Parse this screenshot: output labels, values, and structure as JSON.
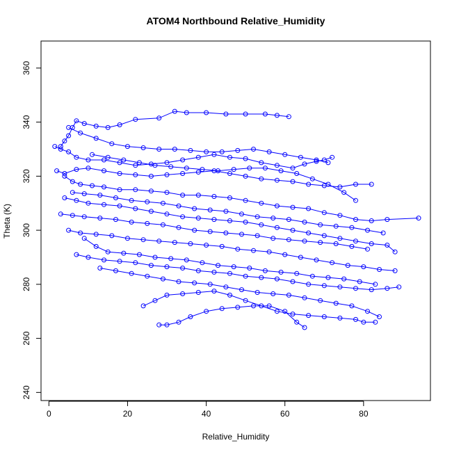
{
  "chart_data": {
    "type": "line",
    "title": "ATOM4 Northbound Relative_Humidity",
    "xlabel": "Relative_Humidity",
    "ylabel": "Theta (K)",
    "xlim": [
      -2,
      97
    ],
    "ylim": [
      237,
      370
    ],
    "xticks": [
      0,
      20,
      40,
      60,
      80
    ],
    "yticks": [
      240,
      260,
      280,
      300,
      320,
      340,
      360
    ],
    "grid": false,
    "legend": "none",
    "colors": {
      "series": "#0000ff",
      "axis": "#000000",
      "background": "#ffffff"
    },
    "markers": "open-circle",
    "series": [
      {
        "values": [
          [
            3.0,
            331.0
          ],
          [
            4.0,
            333.0
          ],
          [
            5.0,
            335.0
          ],
          [
            6.0,
            338.0
          ],
          [
            7.0,
            340.5
          ],
          [
            9.0,
            339.5
          ],
          [
            12.0,
            338.5
          ],
          [
            15.0,
            338.0
          ],
          [
            18.0,
            339.0
          ],
          [
            22.0,
            341.0
          ],
          [
            28.0,
            341.5
          ],
          [
            32.0,
            344.0
          ],
          [
            35.0,
            343.5
          ],
          [
            40.0,
            343.5
          ],
          [
            45.0,
            343.0
          ],
          [
            50.0,
            343.0
          ],
          [
            55.0,
            343.0
          ],
          [
            58.0,
            342.5
          ],
          [
            61.0,
            342.0
          ]
        ]
      },
      {
        "values": [
          [
            1.5,
            331.0
          ],
          [
            3.0,
            330.0
          ],
          [
            5.0,
            329.0
          ],
          [
            7.0,
            327.0
          ],
          [
            10.0,
            326.0
          ],
          [
            14.0,
            326.0
          ],
          [
            18.0,
            325.0
          ],
          [
            22.0,
            324.0
          ],
          [
            26.0,
            324.5
          ],
          [
            30.0,
            325.0
          ],
          [
            34.0,
            326.0
          ],
          [
            38.0,
            327.0
          ],
          [
            42.0,
            328.0
          ],
          [
            46.0,
            327.0
          ],
          [
            50.0,
            326.5
          ],
          [
            54.0,
            325.0
          ],
          [
            58.0,
            324.0
          ],
          [
            62.0,
            323.0
          ],
          [
            65.0,
            324.5
          ],
          [
            68.0,
            325.5
          ],
          [
            70.0,
            326.0
          ],
          [
            72.0,
            327.0
          ]
        ]
      },
      {
        "values": [
          [
            4.0,
            320.0
          ],
          [
            6.0,
            318.0
          ],
          [
            8.0,
            317.0
          ],
          [
            11.0,
            316.5
          ],
          [
            14.0,
            316.0
          ],
          [
            18.0,
            315.0
          ],
          [
            22.0,
            315.0
          ],
          [
            26.0,
            314.5
          ],
          [
            30.0,
            314.0
          ],
          [
            34.0,
            313.0
          ],
          [
            38.0,
            313.0
          ],
          [
            42.0,
            312.5
          ],
          [
            46.0,
            312.0
          ],
          [
            50.0,
            311.0
          ],
          [
            54.0,
            310.0
          ],
          [
            58.0,
            309.0
          ],
          [
            62.0,
            308.5
          ],
          [
            66.0,
            308.0
          ],
          [
            70.0,
            306.5
          ],
          [
            74.0,
            305.5
          ],
          [
            78.0,
            304.0
          ],
          [
            82.0,
            303.5
          ],
          [
            86.0,
            304.0
          ],
          [
            94.0,
            304.5
          ]
        ]
      },
      {
        "values": [
          [
            4.0,
            312.0
          ],
          [
            7.0,
            311.0
          ],
          [
            10.0,
            310.0
          ],
          [
            14.0,
            309.5
          ],
          [
            18.0,
            309.0
          ],
          [
            22.0,
            308.0
          ],
          [
            26.0,
            307.0
          ],
          [
            30.0,
            306.0
          ],
          [
            34.0,
            305.0
          ],
          [
            38.0,
            304.5
          ],
          [
            42.0,
            304.0
          ],
          [
            46.0,
            303.5
          ],
          [
            50.0,
            303.0
          ],
          [
            54.0,
            302.0
          ],
          [
            58.0,
            301.0
          ],
          [
            62.0,
            300.0
          ],
          [
            66.0,
            299.0
          ],
          [
            70.0,
            298.0
          ],
          [
            74.0,
            297.0
          ],
          [
            78.0,
            296.0
          ],
          [
            82.0,
            295.0
          ],
          [
            86.0,
            294.5
          ],
          [
            88.0,
            292.0
          ]
        ]
      },
      {
        "values": [
          [
            5.0,
            300.0
          ],
          [
            8.0,
            299.0
          ],
          [
            12.0,
            298.5
          ],
          [
            16.0,
            298.0
          ],
          [
            20.0,
            297.0
          ],
          [
            24.0,
            296.5
          ],
          [
            28.0,
            296.0
          ],
          [
            32.0,
            295.5
          ],
          [
            36.0,
            295.0
          ],
          [
            40.0,
            294.5
          ],
          [
            44.0,
            294.0
          ],
          [
            48.0,
            293.0
          ],
          [
            52.0,
            292.5
          ],
          [
            56.0,
            292.0
          ],
          [
            60.0,
            291.0
          ],
          [
            64.0,
            290.0
          ],
          [
            68.0,
            289.0
          ],
          [
            72.0,
            288.0
          ],
          [
            76.0,
            287.0
          ],
          [
            80.0,
            286.5
          ],
          [
            84.0,
            285.5
          ],
          [
            88.0,
            285.0
          ]
        ]
      },
      {
        "values": [
          [
            7.0,
            291.0
          ],
          [
            10.0,
            290.0
          ],
          [
            14.0,
            289.0
          ],
          [
            18.0,
            288.5
          ],
          [
            22.0,
            288.0
          ],
          [
            26.0,
            287.0
          ],
          [
            30.0,
            286.5
          ],
          [
            34.0,
            286.0
          ],
          [
            38.0,
            285.0
          ],
          [
            42.0,
            284.5
          ],
          [
            46.0,
            284.0
          ],
          [
            50.0,
            283.0
          ],
          [
            54.0,
            282.5
          ],
          [
            58.0,
            282.0
          ],
          [
            62.0,
            281.0
          ],
          [
            66.0,
            280.0
          ],
          [
            70.0,
            279.5
          ],
          [
            74.0,
            279.0
          ],
          [
            78.0,
            278.5
          ],
          [
            82.0,
            278.0
          ],
          [
            86.0,
            278.5
          ],
          [
            89.0,
            279.0
          ]
        ]
      },
      {
        "values": [
          [
            13.0,
            286.0
          ],
          [
            17.0,
            285.0
          ],
          [
            21.0,
            284.0
          ],
          [
            25.0,
            283.0
          ],
          [
            29.0,
            282.0
          ],
          [
            33.0,
            281.0
          ],
          [
            37.0,
            280.5
          ],
          [
            41.0,
            280.0
          ],
          [
            45.0,
            279.0
          ],
          [
            49.0,
            278.0
          ],
          [
            53.0,
            277.0
          ],
          [
            57.0,
            276.5
          ],
          [
            61.0,
            276.0
          ],
          [
            65.0,
            275.0
          ],
          [
            69.0,
            274.0
          ],
          [
            73.0,
            273.0
          ],
          [
            77.0,
            272.0
          ],
          [
            81.0,
            270.0
          ],
          [
            84.0,
            268.0
          ]
        ]
      },
      {
        "values": [
          [
            24.0,
            272.0
          ],
          [
            27.0,
            274.0
          ],
          [
            30.0,
            276.0
          ],
          [
            34.0,
            276.5
          ],
          [
            38.0,
            277.0
          ],
          [
            42.0,
            277.5
          ],
          [
            46.0,
            276.0
          ],
          [
            50.0,
            274.0
          ],
          [
            54.0,
            272.0
          ],
          [
            58.0,
            270.0
          ],
          [
            62.0,
            269.0
          ],
          [
            66.0,
            268.5
          ],
          [
            70.0,
            268.0
          ],
          [
            74.0,
            267.5
          ],
          [
            78.0,
            267.0
          ],
          [
            80.0,
            266.0
          ],
          [
            83.0,
            266.0
          ]
        ]
      },
      {
        "values": [
          [
            28.0,
            265.0
          ],
          [
            30.0,
            265.0
          ],
          [
            33.0,
            266.0
          ],
          [
            36.0,
            268.0
          ],
          [
            40.0,
            270.0
          ],
          [
            44.0,
            271.0
          ],
          [
            48.0,
            271.5
          ],
          [
            52.0,
            272.0
          ],
          [
            56.0,
            272.0
          ],
          [
            60.0,
            270.0
          ],
          [
            63.0,
            266.0
          ],
          [
            65.0,
            264.0
          ]
        ]
      },
      {
        "values": [
          [
            2.0,
            322.0
          ],
          [
            4.0,
            321.0
          ],
          [
            7.0,
            322.5
          ],
          [
            10.0,
            323.0
          ],
          [
            14.0,
            322.0
          ],
          [
            18.0,
            321.0
          ],
          [
            22.0,
            320.5
          ],
          [
            26.0,
            320.0
          ],
          [
            30.0,
            320.5
          ],
          [
            34.0,
            321.0
          ],
          [
            38.0,
            321.5
          ],
          [
            42.0,
            322.0
          ],
          [
            46.0,
            321.0
          ],
          [
            50.0,
            320.0
          ],
          [
            54.0,
            319.0
          ],
          [
            58.0,
            318.5
          ],
          [
            62.0,
            318.0
          ],
          [
            66.0,
            317.0
          ],
          [
            70.0,
            316.5
          ],
          [
            74.0,
            316.0
          ],
          [
            78.0,
            317.0
          ],
          [
            82.0,
            317.0
          ]
        ]
      },
      {
        "values": [
          [
            3.0,
            306.0
          ],
          [
            6.0,
            305.5
          ],
          [
            9.0,
            305.0
          ],
          [
            13.0,
            304.5
          ],
          [
            17.0,
            304.0
          ],
          [
            21.0,
            303.0
          ],
          [
            25.0,
            302.5
          ],
          [
            29.0,
            302.0
          ],
          [
            33.0,
            301.0
          ],
          [
            37.0,
            300.0
          ],
          [
            41.0,
            299.5
          ],
          [
            45.0,
            299.0
          ],
          [
            49.0,
            298.5
          ],
          [
            53.0,
            298.0
          ],
          [
            57.0,
            297.0
          ],
          [
            61.0,
            296.5
          ],
          [
            65.0,
            296.0
          ],
          [
            69.0,
            295.5
          ],
          [
            73.0,
            295.0
          ],
          [
            77.0,
            294.0
          ],
          [
            81.0,
            293.0
          ]
        ]
      },
      {
        "values": [
          [
            5.0,
            338.0
          ],
          [
            8.0,
            336.0
          ],
          [
            12.0,
            334.0
          ],
          [
            16.0,
            332.0
          ],
          [
            20.0,
            331.0
          ],
          [
            24.0,
            330.5
          ],
          [
            28.0,
            330.0
          ],
          [
            32.0,
            330.0
          ],
          [
            36.0,
            329.5
          ],
          [
            40.0,
            329.0
          ],
          [
            44.0,
            329.0
          ],
          [
            48.0,
            329.5
          ],
          [
            52.0,
            330.0
          ],
          [
            56.0,
            329.0
          ],
          [
            60.0,
            328.0
          ],
          [
            64.0,
            327.0
          ],
          [
            68.0,
            326.0
          ],
          [
            71.0,
            325.0
          ]
        ]
      },
      {
        "values": [
          [
            9.0,
            297.0
          ],
          [
            12.0,
            294.0
          ],
          [
            15.0,
            292.0
          ],
          [
            19.0,
            291.5
          ],
          [
            23.0,
            291.0
          ],
          [
            27.0,
            290.0
          ],
          [
            31.0,
            289.5
          ],
          [
            35.0,
            289.0
          ],
          [
            39.0,
            288.0
          ],
          [
            43.0,
            287.0
          ],
          [
            47.0,
            286.5
          ],
          [
            51.0,
            286.0
          ],
          [
            55.0,
            285.0
          ],
          [
            59.0,
            284.5
          ],
          [
            63.0,
            284.0
          ],
          [
            67.0,
            283.0
          ],
          [
            71.0,
            282.5
          ],
          [
            75.0,
            282.0
          ],
          [
            79.0,
            281.0
          ],
          [
            83.0,
            280.0
          ]
        ]
      },
      {
        "values": [
          [
            6.0,
            314.0
          ],
          [
            9.0,
            313.5
          ],
          [
            13.0,
            313.0
          ],
          [
            17.0,
            312.0
          ],
          [
            21.0,
            311.0
          ],
          [
            25.0,
            310.5
          ],
          [
            29.0,
            310.0
          ],
          [
            33.0,
            309.0
          ],
          [
            37.0,
            308.0
          ],
          [
            41.0,
            307.5
          ],
          [
            45.0,
            307.0
          ],
          [
            49.0,
            306.0
          ],
          [
            53.0,
            305.0
          ],
          [
            57.0,
            304.5
          ],
          [
            61.0,
            304.0
          ],
          [
            65.0,
            303.0
          ],
          [
            69.0,
            302.0
          ],
          [
            73.0,
            301.5
          ],
          [
            77.0,
            301.0
          ],
          [
            81.0,
            300.0
          ],
          [
            85.0,
            299.0
          ]
        ]
      },
      {
        "values": [
          [
            11.0,
            328.0
          ],
          [
            15.0,
            327.0
          ],
          [
            19.0,
            326.0
          ],
          [
            23.0,
            325.0
          ],
          [
            27.0,
            324.0
          ],
          [
            31.0,
            323.5
          ],
          [
            35.0,
            323.0
          ],
          [
            39.0,
            322.5
          ],
          [
            43.0,
            322.0
          ],
          [
            47.0,
            322.5
          ],
          [
            51.0,
            323.0
          ],
          [
            55.0,
            323.0
          ],
          [
            59.0,
            322.0
          ],
          [
            63.0,
            321.0
          ],
          [
            67.0,
            319.0
          ],
          [
            71.0,
            317.0
          ],
          [
            75.0,
            314.0
          ],
          [
            78.0,
            311.0
          ]
        ]
      }
    ]
  }
}
